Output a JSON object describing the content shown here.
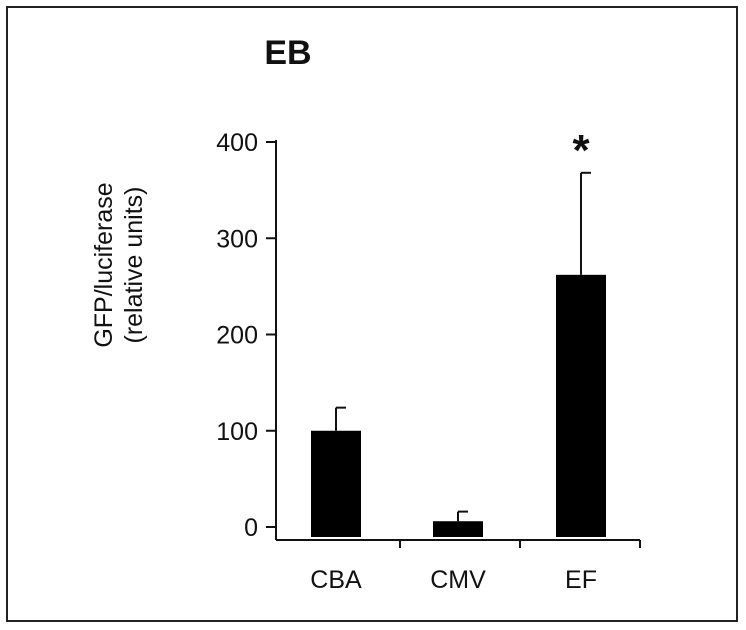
{
  "chart_data": {
    "type": "bar",
    "title": "EB",
    "categories": [
      "CBA",
      "CMV",
      "EF"
    ],
    "values": [
      100,
      6,
      262
    ],
    "error_upper": [
      124,
      16,
      368
    ],
    "ylabel_line1": "GFP/luciferase",
    "ylabel_line2": "(relative units)",
    "xlabel": "",
    "ylim": [
      0,
      400
    ],
    "yticks": [
      0,
      100,
      200,
      300,
      400
    ],
    "ytick_labels": [
      "0",
      "100",
      "200",
      "300",
      "400"
    ],
    "annotations": [
      {
        "category": "EF",
        "text": "*"
      }
    ],
    "grid": false,
    "bar_color": "#000000"
  }
}
